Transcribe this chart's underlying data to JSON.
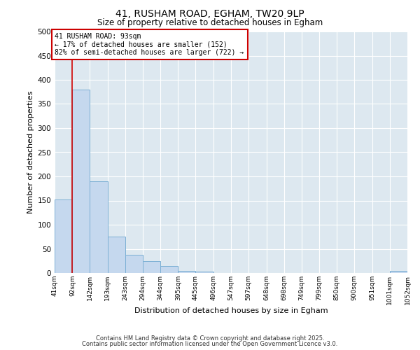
{
  "title_line1": "41, RUSHAM ROAD, EGHAM, TW20 9LP",
  "title_line2": "Size of property relative to detached houses in Egham",
  "xlabel": "Distribution of detached houses by size in Egham",
  "ylabel": "Number of detached properties",
  "bar_edges": [
    41,
    92,
    142,
    193,
    243,
    294,
    344,
    395,
    445,
    496,
    547,
    597,
    648,
    698,
    749,
    799,
    850,
    900,
    951,
    1001,
    1052
  ],
  "bar_heights": [
    152,
    380,
    190,
    75,
    38,
    25,
    15,
    5,
    3,
    0,
    0,
    0,
    0,
    0,
    0,
    0,
    0,
    0,
    0,
    4
  ],
  "bar_color": "#c5d8ee",
  "bar_edge_color": "#7bafd4",
  "vline_x": 92,
  "vline_color": "#cc0000",
  "annotation_text": "41 RUSHAM ROAD: 93sqm\n← 17% of detached houses are smaller (152)\n82% of semi-detached houses are larger (722) →",
  "annotation_box_color": "#cc0000",
  "annotation_bg": "#ffffff",
  "ylim": [
    0,
    500
  ],
  "yticks": [
    0,
    50,
    100,
    150,
    200,
    250,
    300,
    350,
    400,
    450,
    500
  ],
  "background_color": "#dde8f0",
  "grid_color": "#ffffff",
  "footer_line1": "Contains HM Land Registry data © Crown copyright and database right 2025.",
  "footer_line2": "Contains public sector information licensed under the Open Government Licence v3.0.",
  "fig_width": 6.0,
  "fig_height": 5.0,
  "dpi": 100
}
